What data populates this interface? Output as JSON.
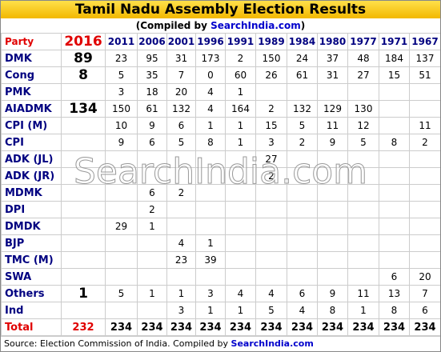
{
  "header": {
    "title": "Tamil Nadu Assembly Election Results",
    "subtitle_prefix": "(Compiled by ",
    "subtitle_site": "SearchIndia.com",
    "subtitle_suffix": ")"
  },
  "table": {
    "columns": [
      "Party",
      "2016",
      "2011",
      "2006",
      "2001",
      "1996",
      "1991",
      "1989",
      "1984",
      "1980",
      "1977",
      "1971",
      "1967"
    ],
    "rows": [
      [
        "DMK",
        89,
        23,
        95,
        31,
        173,
        2,
        150,
        24,
        37,
        48,
        184,
        137
      ],
      [
        "Cong",
        8,
        5,
        35,
        7,
        0,
        60,
        26,
        61,
        31,
        27,
        15,
        51
      ],
      [
        "PMK",
        null,
        3,
        18,
        20,
        4,
        1,
        null,
        null,
        null,
        null,
        null,
        null
      ],
      [
        "AIADMK",
        134,
        150,
        61,
        132,
        4,
        164,
        2,
        132,
        129,
        130,
        null,
        null
      ],
      [
        "CPI (M)",
        null,
        10,
        9,
        6,
        1,
        1,
        15,
        5,
        11,
        12,
        null,
        11
      ],
      [
        "CPI",
        null,
        9,
        6,
        5,
        8,
        1,
        3,
        2,
        9,
        5,
        8,
        2
      ],
      [
        "ADK (JL)",
        null,
        null,
        null,
        null,
        null,
        null,
        27,
        null,
        null,
        null,
        null,
        null
      ],
      [
        "ADK (JR)",
        null,
        null,
        null,
        null,
        null,
        null,
        2,
        null,
        null,
        null,
        null,
        null
      ],
      [
        "MDMK",
        null,
        null,
        6,
        2,
        null,
        null,
        null,
        null,
        null,
        null,
        null,
        null
      ],
      [
        "DPI",
        null,
        null,
        2,
        null,
        null,
        null,
        null,
        null,
        null,
        null,
        null,
        null
      ],
      [
        "DMDK",
        null,
        29,
        1,
        null,
        null,
        null,
        null,
        null,
        null,
        null,
        null,
        null
      ],
      [
        "BJP",
        null,
        null,
        null,
        4,
        1,
        null,
        null,
        null,
        null,
        null,
        null,
        null
      ],
      [
        "TMC (M)",
        null,
        null,
        null,
        23,
        39,
        null,
        null,
        null,
        null,
        null,
        null,
        null
      ],
      [
        "SWA",
        null,
        null,
        null,
        null,
        null,
        null,
        null,
        null,
        null,
        null,
        6,
        20
      ],
      [
        "Others",
        1,
        5,
        1,
        1,
        3,
        4,
        4,
        6,
        9,
        11,
        13,
        7
      ],
      [
        "Ind",
        null,
        null,
        null,
        3,
        1,
        1,
        5,
        4,
        8,
        1,
        8,
        6
      ],
      [
        "Total",
        232,
        234,
        234,
        234,
        234,
        234,
        234,
        234,
        234,
        234,
        234,
        234
      ]
    ]
  },
  "watermark": "SearchIndia.com",
  "footer": {
    "text": "Source: Election Commission of India. Compiled by ",
    "site": "SearchIndia.com"
  }
}
